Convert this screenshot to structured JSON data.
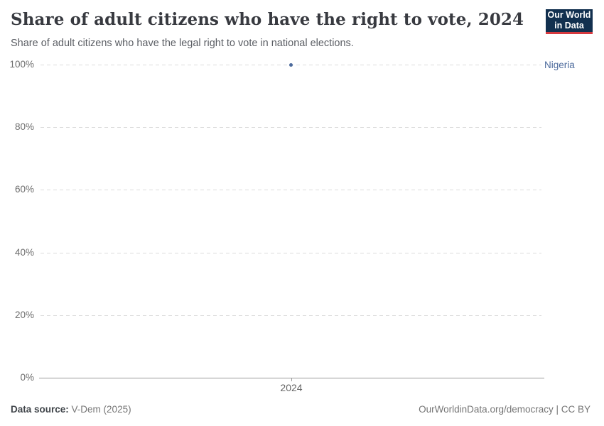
{
  "header": {
    "title": "Share of adult citizens who have the right to vote, 2024",
    "subtitle": "Share of adult citizens who have the legal right to vote in national elections.",
    "logo_line1": "Our World",
    "logo_line2": "in Data"
  },
  "chart_data": {
    "type": "scatter",
    "title": "Share of adult citizens who have the right to vote, 2024",
    "series": [
      {
        "name": "Nigeria",
        "color": "#4C6A9C",
        "points": [
          {
            "x": 2024,
            "y": 100
          }
        ]
      }
    ],
    "xticks": [
      "2024"
    ],
    "yticks": [
      "0%",
      "20%",
      "40%",
      "60%",
      "80%",
      "100%"
    ],
    "ytick_values": [
      0,
      20,
      40,
      60,
      80,
      100
    ],
    "ylim": [
      0,
      100
    ],
    "xlabel": "",
    "ylabel": "",
    "grid": "horizontal-dashed",
    "legend_position": "right-of-plot"
  },
  "footer": {
    "datasource_label": "Data source:",
    "datasource_value": "V-Dem (2025)",
    "license": "OurWorldinData.org/democracy | CC BY"
  },
  "colors": {
    "accent_blue": "#4C6A9C",
    "logo_navy": "#12304F",
    "logo_red": "#D6393F",
    "gridline": "#dcdcdc",
    "axis": "#9a9a9a"
  }
}
